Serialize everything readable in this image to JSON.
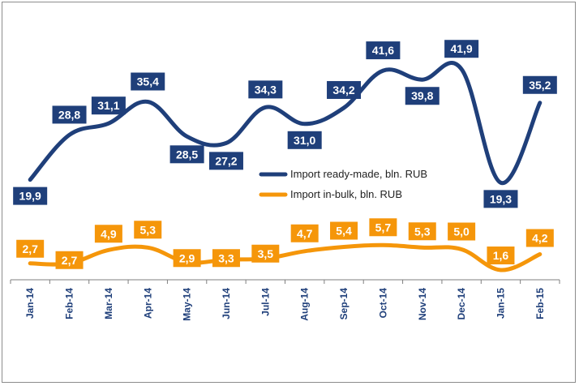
{
  "chart_data": {
    "type": "line",
    "categories": [
      "Jan-14",
      "Feb-14",
      "Mar-14",
      "Apr-14",
      "May-14",
      "Jun-14",
      "Jul-14",
      "Aug-14",
      "Sep-14",
      "Oct-14",
      "Nov-14",
      "Dec-14",
      "Jan-15",
      "Feb-15"
    ],
    "series": [
      {
        "name": "Import ready-made, bln. RUB",
        "color": "#1f3f7a",
        "values": [
          19.9,
          28.8,
          31.1,
          35.4,
          28.5,
          27.2,
          34.3,
          31.0,
          34.2,
          41.6,
          39.8,
          41.9,
          19.3,
          35.2
        ],
        "labels": [
          "19,9",
          "28,8",
          "31,1",
          "35,4",
          "28,5",
          "27,2",
          "34,3",
          "31,0",
          "34,2",
          "41,6",
          "39,8",
          "41,9",
          "19,3",
          "35,2"
        ]
      },
      {
        "name": "Import in-bulk, bln. RUB",
        "color": "#f5960a",
        "values": [
          2.7,
          2.7,
          4.9,
          5.3,
          2.9,
          3.3,
          3.5,
          4.7,
          5.4,
          5.7,
          5.3,
          5.0,
          1.6,
          4.2
        ],
        "labels": [
          "2,7",
          "2,7",
          "4,9",
          "5,3",
          "2,9",
          "3,3",
          "3,5",
          "4,7",
          "5,4",
          "5,7",
          "5,3",
          "5,0",
          "1,6",
          "4,2"
        ]
      }
    ],
    "legend_position": "center-right",
    "grid": false,
    "label_text_color": "#ffffff",
    "axis_color": "#7f7f7f",
    "tick_label_color": "#1f3f7a"
  }
}
